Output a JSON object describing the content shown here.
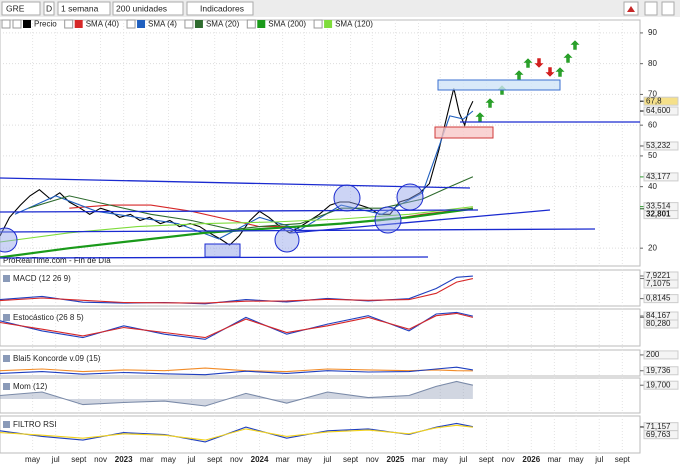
{
  "toolbar": {
    "symbol": "GRE",
    "mode": "D",
    "period": "1 semana",
    "units": "200 unidades",
    "indicators": "Indicadores"
  },
  "chart_data": [
    {
      "type": "line",
      "watermark": "ProRealTime.com - Fin de Día",
      "xlim": [
        2022.09,
        2026.8
      ],
      "xticks": [
        {
          "value": 2022.33,
          "label": "may"
        },
        {
          "value": 2022.5,
          "label": "jul"
        },
        {
          "value": 2022.67,
          "label": "sept"
        },
        {
          "value": 2022.83,
          "label": "nov"
        },
        2023,
        {
          "value": 2023.17,
          "label": "mar"
        },
        {
          "value": 2023.33,
          "label": "may"
        },
        {
          "value": 2023.5,
          "label": "jul"
        },
        {
          "value": 2023.67,
          "label": "sept"
        },
        {
          "value": 2023.83,
          "label": "nov"
        },
        2024,
        {
          "value": 2024.17,
          "label": "mar"
        },
        {
          "value": 2024.33,
          "label": "may"
        },
        {
          "value": 2024.5,
          "label": "jul"
        },
        {
          "value": 2024.67,
          "label": "sept"
        },
        {
          "value": 2024.83,
          "label": "nov"
        },
        2025,
        {
          "value": 2025.17,
          "label": "mar"
        },
        {
          "value": 2025.33,
          "label": "may"
        },
        {
          "value": 2025.5,
          "label": "jul"
        },
        {
          "value": 2025.67,
          "label": "sept"
        },
        {
          "value": 2025.83,
          "label": "nov"
        },
        2026,
        {
          "value": 2026.17,
          "label": "mar"
        },
        {
          "value": 2026.33,
          "label": "may"
        },
        {
          "value": 2026.5,
          "label": "jul"
        },
        {
          "value": 2026.67,
          "label": "sept"
        }
      ],
      "ylim": [
        14.2,
        94.2
      ],
      "yticks": [
        20,
        40,
        50,
        60,
        70,
        80,
        90
      ],
      "grid": true,
      "x": [
        2022.09,
        2022.16,
        2022.24,
        2022.31,
        2022.38,
        2022.46,
        2022.53,
        2022.6,
        2022.68,
        2022.75,
        2022.83,
        2022.9,
        2022.97,
        2023.05,
        2023.12,
        2023.19,
        2023.27,
        2023.34,
        2023.41,
        2023.49,
        2023.56,
        2023.63,
        2023.71,
        2023.78,
        2023.85,
        2023.93,
        2024.0,
        2024.07,
        2024.15,
        2024.22,
        2024.3,
        2024.37,
        2024.44,
        2024.52,
        2024.59,
        2024.66,
        2024.74,
        2024.81,
        2024.88,
        2024.96,
        2025.03,
        2025.1,
        2025.18,
        2025.25,
        2025.32,
        2025.38,
        2025.43,
        2025.47,
        2025.51,
        2025.54,
        2025.57
      ],
      "series": [
        {
          "name": "Precio",
          "color": "#000000",
          "values": [
            24,
            30,
            34,
            37,
            39,
            36,
            38,
            35,
            33,
            31,
            33,
            32,
            30,
            31,
            29,
            30,
            28,
            29,
            27,
            28,
            27,
            25,
            23,
            21,
            24,
            29,
            32,
            30,
            27,
            25,
            27,
            29,
            31,
            34,
            35,
            35,
            34,
            33,
            31,
            31,
            35,
            36,
            38,
            41,
            52,
            63,
            72,
            64,
            60,
            65,
            67.8
          ]
        },
        {
          "name": "SMA (40)",
          "color": "#d62728",
          "x": [
            2022.6,
            2022.9,
            2023.2,
            2023.5,
            2023.8,
            2024.0,
            2024.3,
            2024.6,
            2024.9,
            2025.2,
            2025.57
          ],
          "values": [
            33,
            34,
            34,
            32,
            29,
            27,
            27,
            28,
            29,
            31,
            33
          ]
        },
        {
          "name": "SMA (4)",
          "color": "#1f5fbf",
          "x": [
            2022.2,
            2022.5,
            2022.8,
            2023.1,
            2023.4,
            2023.7,
            2024.0,
            2024.3,
            2024.6,
            2024.9,
            2025.2,
            2025.4,
            2025.5,
            2025.57
          ],
          "values": [
            31,
            37,
            32,
            30,
            28,
            23,
            30,
            26,
            34,
            31,
            38,
            63,
            62,
            64.6
          ]
        },
        {
          "name": "SMA (20)",
          "color": "#2e6b2e",
          "x": [
            2022.3,
            2022.6,
            2022.9,
            2023.2,
            2023.5,
            2023.8,
            2024.0,
            2024.3,
            2024.6,
            2024.9,
            2025.2,
            2025.4,
            2025.57
          ],
          "values": [
            33,
            37,
            34,
            31,
            29,
            26,
            27,
            28,
            33,
            33,
            36,
            40,
            43.2
          ]
        },
        {
          "name": "SMA (200)",
          "color": "#1a9a1a",
          "x": [
            2022.09,
            2022.6,
            2023.1,
            2023.6,
            2024.1,
            2024.6,
            2025.1,
            2025.57
          ],
          "values": [
            17,
            20,
            22.5,
            25,
            26.5,
            28,
            30,
            32.8
          ]
        },
        {
          "name": "SMA (120)",
          "color": "#7fdc3c",
          "x": [
            2022.09,
            2022.6,
            2023.1,
            2023.6,
            2024.1,
            2024.6,
            2025.1,
            2025.57
          ],
          "values": [
            22,
            25,
            27,
            28,
            28.5,
            29.5,
            31,
            33.5
          ]
        }
      ],
      "price_labels": [
        {
          "value": 67.8,
          "label": "67,8",
          "color": "#000000"
        },
        {
          "value": 64.6,
          "label": "64,600",
          "color": "#000000"
        },
        {
          "value": 53.232,
          "label": "53,232",
          "color": "#555555"
        },
        {
          "value": 43.177,
          "label": "43,177",
          "color": "#2e9a2e"
        },
        {
          "value": 33.514,
          "label": "33,514",
          "color": "#2e9a2e"
        },
        {
          "value": 32.801,
          "label": "32,801",
          "color": "#1a5a1a"
        }
      ]
    },
    {
      "type": "line",
      "title": "MACD (12 26 9)",
      "ylim": [
        -1.5,
        9.8
      ],
      "x": [
        2022.09,
        2022.4,
        2022.7,
        2023.0,
        2023.3,
        2023.6,
        2023.9,
        2024.2,
        2024.5,
        2024.8,
        2025.1,
        2025.3,
        2025.45,
        2025.57
      ],
      "series": [
        {
          "color": "#1f3fbf",
          "values": [
            0.5,
            1.5,
            -0.3,
            -0.6,
            -0.4,
            -0.8,
            0.5,
            -0.2,
            0.9,
            0.1,
            0.8,
            4,
            7.5,
            7.9
          ]
        },
        {
          "color": "#d62728",
          "values": [
            0.2,
            1.0,
            0.3,
            -0.4,
            -0.5,
            -0.6,
            0,
            0.1,
            0.6,
            0.3,
            0.5,
            2.5,
            6,
            7.1
          ]
        }
      ],
      "labels": [
        {
          "value": 7.9221,
          "label": "7,9221"
        },
        {
          "value": 7.1075,
          "label": "7,1075"
        },
        {
          "value": 0.8145,
          "label": "0,8145"
        }
      ]
    },
    {
      "type": "line",
      "title": "Estocástico (26 8 5)",
      "ylim": [
        -5,
        105
      ],
      "x": [
        2022.09,
        2022.4,
        2022.7,
        2023.0,
        2023.3,
        2023.6,
        2023.9,
        2024.2,
        2024.5,
        2024.8,
        2025.1,
        2025.3,
        2025.45,
        2025.57
      ],
      "series": [
        {
          "color": "#1f3fbf",
          "values": [
            70,
            40,
            20,
            55,
            30,
            15,
            80,
            30,
            60,
            85,
            40,
            90,
            95,
            84
          ]
        },
        {
          "color": "#d62728",
          "values": [
            65,
            45,
            25,
            50,
            35,
            20,
            75,
            35,
            55,
            80,
            45,
            85,
            92,
            80
          ]
        }
      ],
      "labels": [
        {
          "value": 84.167,
          "label": "84,167"
        },
        {
          "value": 80.28,
          "label": "80,280"
        }
      ]
    },
    {
      "type": "line",
      "title": "Blai5 Koncorde v.09 (15)",
      "ylim": [
        -40,
        256
      ],
      "x": [
        2022.09,
        2022.4,
        2022.7,
        2023.0,
        2023.3,
        2023.6,
        2023.9,
        2024.2,
        2024.5,
        2024.8,
        2025.1,
        2025.3,
        2025.45,
        2025.57
      ],
      "series": [
        {
          "color": "#f28c28",
          "values": [
            20,
            40,
            10,
            30,
            20,
            50,
            20,
            10,
            40,
            30,
            20,
            30,
            20,
            19.7
          ]
        },
        {
          "color": "#1f3fbf",
          "values": [
            -10,
            10,
            -20,
            0,
            -15,
            -25,
            15,
            -10,
            20,
            5,
            10,
            40,
            60,
            30
          ]
        }
      ],
      "labels": [
        200,
        {
          "value": 19.736,
          "label": "19,736"
        }
      ]
    },
    {
      "type": "area",
      "title": "Mom (12)",
      "ylim": [
        -20,
        30
      ],
      "x": [
        2022.09,
        2022.4,
        2022.7,
        2023.0,
        2023.3,
        2023.6,
        2023.9,
        2024.2,
        2024.5,
        2024.8,
        2025.1,
        2025.3,
        2025.45,
        2025.57
      ],
      "series": [
        {
          "color": "#7a8aa8",
          "values": [
            5,
            10,
            -8,
            -5,
            -3,
            -10,
            8,
            -6,
            10,
            2,
            5,
            18,
            25,
            19.7
          ]
        }
      ],
      "labels": [
        {
          "value": 19.7,
          "label": "19,700"
        }
      ]
    },
    {
      "type": "line",
      "title": "FILTRO RSI",
      "ylim": [
        0,
        100
      ],
      "x": [
        2022.09,
        2022.4,
        2022.7,
        2023.0,
        2023.3,
        2023.6,
        2023.9,
        2024.2,
        2024.5,
        2024.8,
        2025.1,
        2025.3,
        2025.45,
        2025.57
      ],
      "series": [
        {
          "color": "#1f3fbf",
          "values": [
            60,
            45,
            35,
            55,
            50,
            30,
            70,
            40,
            60,
            65,
            50,
            70,
            80,
            71.2
          ]
        },
        {
          "color": "#f2d21b",
          "values": [
            55,
            48,
            40,
            52,
            48,
            35,
            65,
            45,
            57,
            62,
            52,
            68,
            75,
            69.8
          ]
        }
      ],
      "labels": [
        {
          "value": 71.157,
          "label": "71,157"
        },
        {
          "value": 69.763,
          "label": "69,763"
        }
      ]
    }
  ]
}
